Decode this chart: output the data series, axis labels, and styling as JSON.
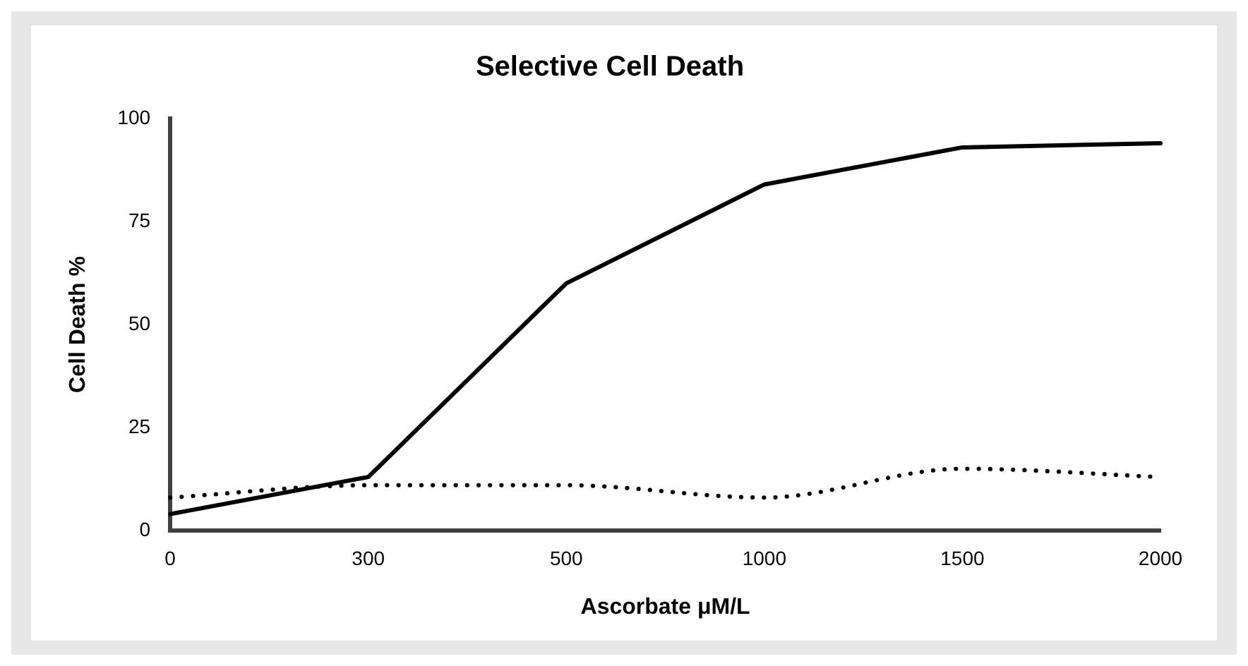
{
  "chart_data": {
    "type": "line",
    "title": "Selective Cell Death",
    "xlabel": "Ascorbate μM/L",
    "ylabel": "Cell Death %",
    "categories": [
      "0",
      "300",
      "500",
      "1000",
      "1500",
      "2000"
    ],
    "series": [
      {
        "color": "#000000",
        "values": [
          4,
          13,
          60,
          84,
          93,
          94
        ],
        "line_style": "solid"
      },
      {
        "color": "#000000",
        "values": [
          8,
          11,
          11,
          8,
          15,
          13
        ],
        "line_style": "dotted"
      }
    ],
    "ylim": [
      0,
      100
    ],
    "yticks": [
      0,
      25,
      50,
      75,
      100
    ],
    "grid": false,
    "legend": false,
    "marker": "none"
  }
}
